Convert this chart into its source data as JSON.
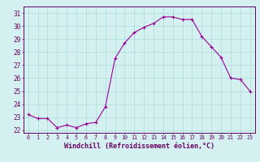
{
  "hours": [
    0,
    1,
    2,
    3,
    4,
    5,
    6,
    7,
    8,
    9,
    10,
    11,
    12,
    13,
    14,
    15,
    16,
    17,
    18,
    19,
    20,
    21,
    22,
    23
  ],
  "values": [
    23.2,
    22.9,
    22.9,
    22.2,
    22.4,
    22.2,
    22.5,
    22.6,
    23.8,
    27.5,
    28.7,
    29.5,
    29.9,
    30.2,
    30.7,
    30.7,
    30.5,
    30.5,
    29.2,
    28.4,
    27.6,
    26.0,
    25.9,
    25.0
  ],
  "xlim": [
    -0.5,
    23.5
  ],
  "ylim": [
    21.8,
    31.5
  ],
  "yticks": [
    22,
    23,
    24,
    25,
    26,
    27,
    28,
    29,
    30,
    31
  ],
  "xticks": [
    0,
    1,
    2,
    3,
    4,
    5,
    6,
    7,
    8,
    9,
    10,
    11,
    12,
    13,
    14,
    15,
    16,
    17,
    18,
    19,
    20,
    21,
    22,
    23
  ],
  "xlabel": "Windchill (Refroidissement éolien,°C)",
  "line_color": "#990099",
  "marker": "+",
  "bg_color": "#d4f0f0",
  "grid_color": "#aadddd",
  "axis_color": "#660066",
  "tick_label_color": "#660066",
  "xlabel_color": "#660066"
}
